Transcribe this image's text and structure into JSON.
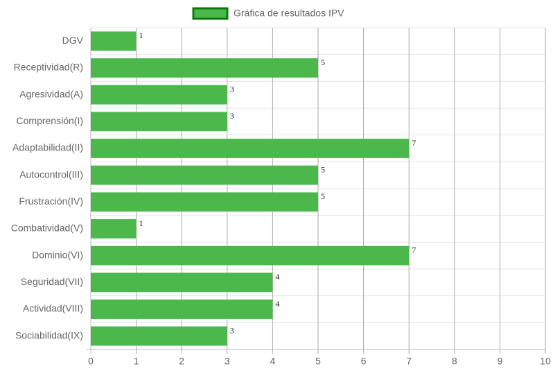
{
  "chart_data": {
    "type": "bar",
    "orientation": "horizontal",
    "categories": [
      "DGV",
      "Receptividad(R)",
      "Agresividad(A)",
      "Comprensión(I)",
      "Adaptabilidad(II)",
      "Autocontrol(III)",
      "Frustración(IV)",
      "Combatividad(V)",
      "Dominio(VI)",
      "Seguridad(VII)",
      "Actividad(VIII)",
      "Sociabilidad(IX)"
    ],
    "series": [
      {
        "name": "Gráfica de resultados IPV",
        "color": "#4cb84c",
        "values": [
          1,
          5,
          3,
          3,
          7,
          5,
          5,
          1,
          7,
          4,
          4,
          3
        ]
      }
    ],
    "xlim": [
      0,
      10
    ],
    "xticks": [
      0,
      1,
      2,
      3,
      4,
      5,
      6,
      7,
      8,
      9,
      10
    ],
    "grid": true,
    "legend": "top",
    "data_labels": true
  }
}
